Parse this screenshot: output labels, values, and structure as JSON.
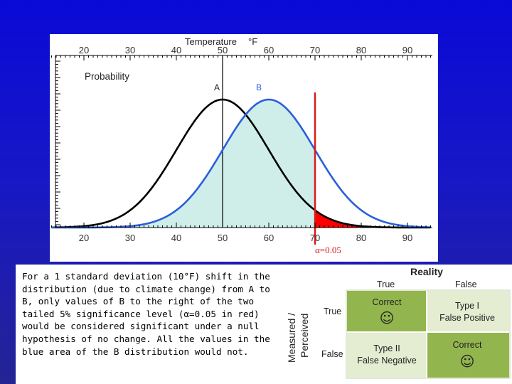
{
  "chart": {
    "top_axis_title": "Temperature",
    "top_axis_unit": "°F",
    "y_label": "Probability",
    "alpha_label": "α=0.05",
    "curve_a_label": "A",
    "curve_b_label": "B"
  },
  "chart_data": {
    "type": "line",
    "title": "",
    "xlabel": "Temperature °F",
    "ylabel": "Probability",
    "xlim": [
      13,
      95
    ],
    "xticks": [
      20,
      30,
      40,
      50,
      60,
      70,
      80,
      90
    ],
    "series": [
      {
        "name": "A",
        "mean": 50,
        "std_dev": 10,
        "color": "#000000",
        "line": "solid"
      },
      {
        "name": "B",
        "mean": 60,
        "std_dev": 10,
        "color": "#2b5fd9",
        "line": "solid",
        "fill": "#cfeee9"
      }
    ],
    "threshold": {
      "x": 70,
      "label": "α=0.05",
      "color": "#d81c1c",
      "shaded_tail_of": "A"
    },
    "vertical_marker": {
      "x": 50
    },
    "grid": false,
    "legend": "none"
  },
  "caption": {
    "text": "For a 1 standard deviation (10°F) shift in the distribution (due to climate change) from A to B, only values of B to the right of the two tailed 5% significance level (α=0.05 in red) would be considered significant under a null hypothesis of no change.  All the values in the blue area of the B distribution would not."
  },
  "matrix": {
    "reality_title": "Reality",
    "col_true": "True",
    "col_false": "False",
    "row_axis_label_1": "Measured /",
    "row_axis_label_2": "Perceived",
    "row_true": "True",
    "row_false": "False",
    "cell_tt": "Correct",
    "cell_tf_1": "Type I",
    "cell_tf_2": "False Positive",
    "cell_ft_1": "Type II",
    "cell_ft_2": "False Negative",
    "cell_ff": "Correct",
    "smiley": "☺",
    "colors": {
      "green": "#93b54e",
      "light": "#e4ecd2"
    }
  }
}
